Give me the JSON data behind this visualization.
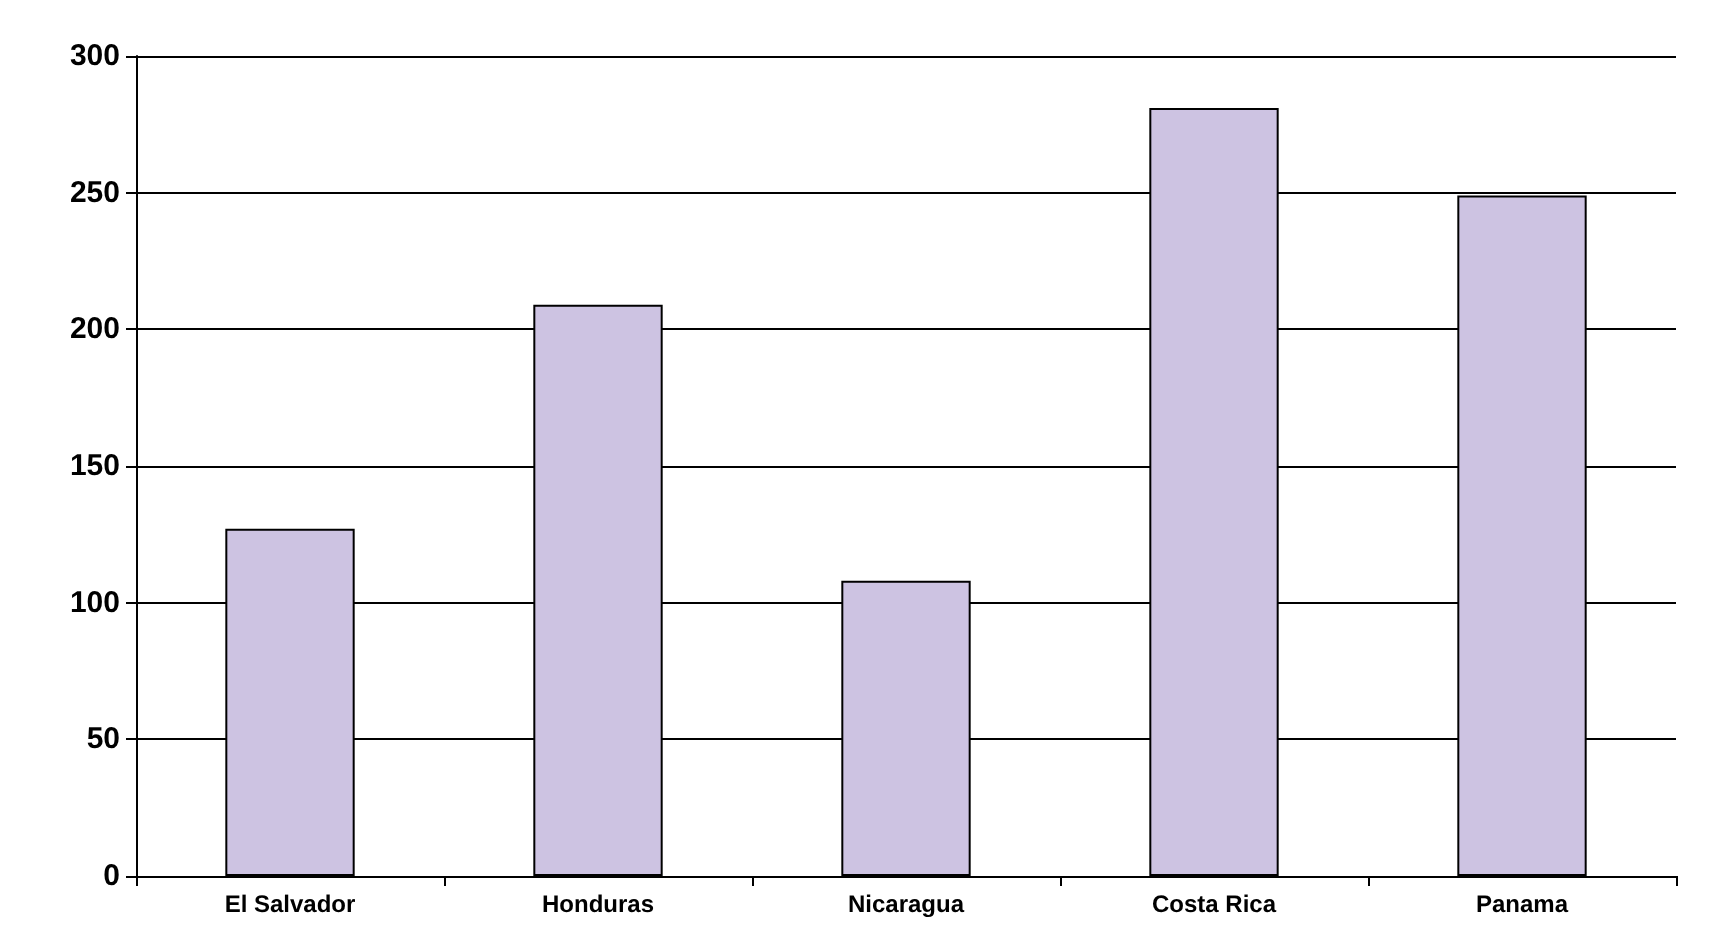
{
  "chart_data": {
    "type": "bar",
    "categories": [
      "El Salvador",
      "Honduras",
      "Nicaragua",
      "Costa Rica",
      "Panama"
    ],
    "values": [
      127,
      209,
      108,
      281,
      249
    ],
    "color": "#cdc3e2",
    "ylim": [
      0,
      300
    ],
    "yticks": [
      0,
      50,
      100,
      150,
      200,
      250,
      300
    ],
    "grid": "y"
  }
}
